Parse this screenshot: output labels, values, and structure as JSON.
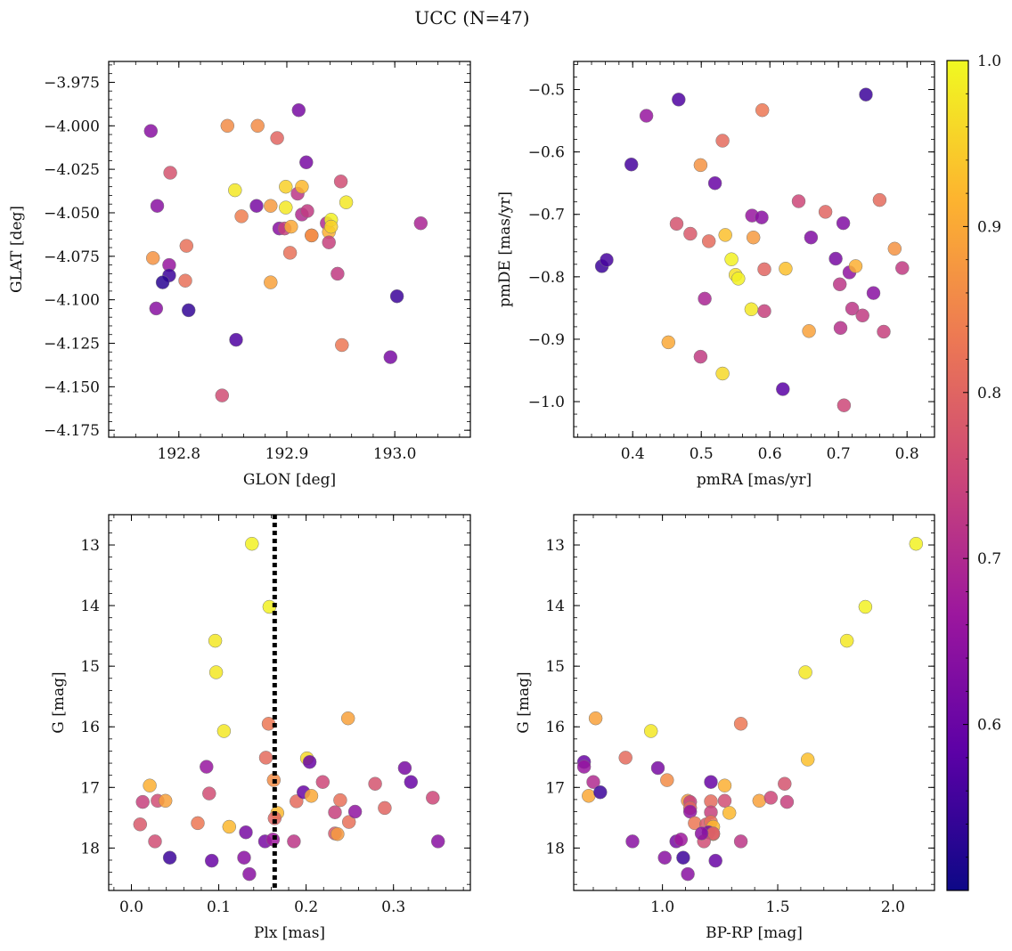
{
  "figure": {
    "title": "UCC (N=47)",
    "colorbar": {
      "range": [
        0.5,
        1.0
      ],
      "ticks": [
        0.6,
        0.7,
        0.8,
        0.9,
        1.0
      ],
      "tick_labels": [
        "0.6",
        "0.7",
        "0.8",
        "0.9",
        "1.0"
      ],
      "colormap": "plasma",
      "stops": [
        "#0d0887",
        "#5c01a6",
        "#9c179e",
        "#cc4778",
        "#ed7953",
        "#fdb42f",
        "#f0f921"
      ]
    }
  },
  "chart_data": [
    {
      "type": "scatter",
      "xlabel": "GLON [deg]",
      "ylabel": "GLAT [deg]",
      "xlim": [
        192.735,
        193.07
      ],
      "ylim": [
        -4.179,
        -3.963
      ],
      "xticks": [
        192.8,
        192.9,
        193.0
      ],
      "xtick_labels": [
        "192.8",
        "192.9",
        "193.0"
      ],
      "yticks": [
        -4.175,
        -4.15,
        -4.125,
        -4.1,
        -4.075,
        -4.05,
        -4.025,
        -4.0,
        -3.975
      ],
      "ytick_labels": [
        "−4.175",
        "−4.150",
        "−4.125",
        "−4.100",
        "−4.075",
        "−4.050",
        "−4.025",
        "−4.000",
        "−3.975"
      ],
      "invert_y": false,
      "points": [
        {
          "x": 192.774,
          "y": -4.003,
          "c": 0.64
        },
        {
          "x": 192.792,
          "y": -4.027,
          "c": 0.77
        },
        {
          "x": 192.78,
          "y": -4.046,
          "c": 0.64
        },
        {
          "x": 192.776,
          "y": -4.076,
          "c": 0.87
        },
        {
          "x": 192.791,
          "y": -4.08,
          "c": 0.66
        },
        {
          "x": 192.791,
          "y": -4.086,
          "c": 0.55
        },
        {
          "x": 192.785,
          "y": -4.09,
          "c": 0.53
        },
        {
          "x": 192.779,
          "y": -4.105,
          "c": 0.64
        },
        {
          "x": 192.807,
          "y": -4.069,
          "c": 0.82
        },
        {
          "x": 192.806,
          "y": -4.089,
          "c": 0.82
        },
        {
          "x": 192.809,
          "y": -4.106,
          "c": 0.54
        },
        {
          "x": 192.845,
          "y": -4.0,
          "c": 0.86
        },
        {
          "x": 192.873,
          "y": -4.0,
          "c": 0.86
        },
        {
          "x": 192.852,
          "y": -4.037,
          "c": 0.98
        },
        {
          "x": 192.858,
          "y": -4.052,
          "c": 0.84
        },
        {
          "x": 192.853,
          "y": -4.123,
          "c": 0.57
        },
        {
          "x": 192.84,
          "y": -4.155,
          "c": 0.76
        },
        {
          "x": 192.872,
          "y": -4.046,
          "c": 0.62
        },
        {
          "x": 192.885,
          "y": -4.046,
          "c": 0.88
        },
        {
          "x": 192.885,
          "y": -4.09,
          "c": 0.89
        },
        {
          "x": 192.891,
          "y": -4.007,
          "c": 0.8
        },
        {
          "x": 192.893,
          "y": -4.059,
          "c": 0.64
        },
        {
          "x": 192.898,
          "y": -4.059,
          "c": 0.74
        },
        {
          "x": 192.899,
          "y": -4.035,
          "c": 0.95
        },
        {
          "x": 192.899,
          "y": -4.047,
          "c": 0.98
        },
        {
          "x": 192.904,
          "y": -4.058,
          "c": 0.9
        },
        {
          "x": 192.903,
          "y": -4.073,
          "c": 0.82
        },
        {
          "x": 192.911,
          "y": -3.991,
          "c": 0.62
        },
        {
          "x": 192.91,
          "y": -4.039,
          "c": 0.72
        },
        {
          "x": 192.914,
          "y": -4.035,
          "c": 0.92
        },
        {
          "x": 192.918,
          "y": -4.021,
          "c": 0.62
        },
        {
          "x": 192.914,
          "y": -4.051,
          "c": 0.7
        },
        {
          "x": 192.919,
          "y": -4.049,
          "c": 0.73
        },
        {
          "x": 192.923,
          "y": -4.063,
          "c": 0.86
        },
        {
          "x": 192.923,
          "y": -4.063,
          "c": 0.86
        },
        {
          "x": 192.937,
          "y": -4.056,
          "c": 0.7
        },
        {
          "x": 192.939,
          "y": -4.061,
          "c": 0.91
        },
        {
          "x": 192.939,
          "y": -4.067,
          "c": 0.74
        },
        {
          "x": 192.941,
          "y": -4.054,
          "c": 0.99
        },
        {
          "x": 192.941,
          "y": -4.058,
          "c": 0.95
        },
        {
          "x": 192.95,
          "y": -4.032,
          "c": 0.76
        },
        {
          "x": 192.947,
          "y": -4.085,
          "c": 0.73
        },
        {
          "x": 192.951,
          "y": -4.126,
          "c": 0.83
        },
        {
          "x": 192.955,
          "y": -4.044,
          "c": 0.98
        },
        {
          "x": 193.002,
          "y": -4.098,
          "c": 0.55
        },
        {
          "x": 192.996,
          "y": -4.133,
          "c": 0.62
        },
        {
          "x": 193.024,
          "y": -4.056,
          "c": 0.69
        }
      ]
    },
    {
      "type": "scatter",
      "xlabel": "pmRA [mas/yr]",
      "ylabel": "pmDE [mas/yr]",
      "xlim": [
        0.314,
        0.84
      ],
      "ylim": [
        -1.057,
        -0.455
      ],
      "xticks": [
        0.4,
        0.5,
        0.6,
        0.7,
        0.8
      ],
      "xtick_labels": [
        "0.4",
        "0.5",
        "0.6",
        "0.7",
        "0.8"
      ],
      "yticks": [
        -1.0,
        -0.9,
        -0.8,
        -0.7,
        -0.6,
        -0.5
      ],
      "ytick_labels": [
        "−1.0",
        "−0.9",
        "−0.8",
        "−0.7",
        "−0.6",
        "−0.5"
      ],
      "invert_y": false,
      "points": [
        {
          "x": 0.355,
          "y": -0.783,
          "c": 0.55
        },
        {
          "x": 0.362,
          "y": -0.773,
          "c": 0.56
        },
        {
          "x": 0.398,
          "y": -0.62,
          "c": 0.56
        },
        {
          "x": 0.42,
          "y": -0.542,
          "c": 0.66
        },
        {
          "x": 0.467,
          "y": -0.516,
          "c": 0.57
        },
        {
          "x": 0.464,
          "y": -0.715,
          "c": 0.77
        },
        {
          "x": 0.484,
          "y": -0.731,
          "c": 0.78
        },
        {
          "x": 0.452,
          "y": -0.905,
          "c": 0.9
        },
        {
          "x": 0.499,
          "y": -0.621,
          "c": 0.87
        },
        {
          "x": 0.499,
          "y": -0.928,
          "c": 0.73
        },
        {
          "x": 0.505,
          "y": -0.835,
          "c": 0.69
        },
        {
          "x": 0.511,
          "y": -0.743,
          "c": 0.81
        },
        {
          "x": 0.52,
          "y": -0.65,
          "c": 0.6
        },
        {
          "x": 0.531,
          "y": -0.582,
          "c": 0.81
        },
        {
          "x": 0.535,
          "y": -0.733,
          "c": 0.93
        },
        {
          "x": 0.531,
          "y": -0.955,
          "c": 0.96
        },
        {
          "x": 0.544,
          "y": -0.772,
          "c": 0.99
        },
        {
          "x": 0.55,
          "y": -0.797,
          "c": 0.97
        },
        {
          "x": 0.554,
          "y": -0.803,
          "c": 0.99
        },
        {
          "x": 0.574,
          "y": -0.702,
          "c": 0.66
        },
        {
          "x": 0.576,
          "y": -0.737,
          "c": 0.88
        },
        {
          "x": 0.573,
          "y": -0.852,
          "c": 0.98
        },
        {
          "x": 0.588,
          "y": -0.705,
          "c": 0.64
        },
        {
          "x": 0.589,
          "y": -0.533,
          "c": 0.83
        },
        {
          "x": 0.592,
          "y": -0.788,
          "c": 0.8
        },
        {
          "x": 0.592,
          "y": -0.855,
          "c": 0.74
        },
        {
          "x": 0.619,
          "y": -0.98,
          "c": 0.58
        },
        {
          "x": 0.623,
          "y": -0.787,
          "c": 0.93
        },
        {
          "x": 0.642,
          "y": -0.679,
          "c": 0.75
        },
        {
          "x": 0.66,
          "y": -0.737,
          "c": 0.63
        },
        {
          "x": 0.657,
          "y": -0.887,
          "c": 0.89
        },
        {
          "x": 0.681,
          "y": -0.696,
          "c": 0.8
        },
        {
          "x": 0.696,
          "y": -0.771,
          "c": 0.62
        },
        {
          "x": 0.702,
          "y": -0.812,
          "c": 0.72
        },
        {
          "x": 0.703,
          "y": -0.882,
          "c": 0.71
        },
        {
          "x": 0.707,
          "y": -0.714,
          "c": 0.63
        },
        {
          "x": 0.708,
          "y": -1.006,
          "c": 0.75
        },
        {
          "x": 0.716,
          "y": -0.793,
          "c": 0.65
        },
        {
          "x": 0.72,
          "y": -0.851,
          "c": 0.72
        },
        {
          "x": 0.725,
          "y": -0.783,
          "c": 0.91
        },
        {
          "x": 0.735,
          "y": -0.862,
          "c": 0.73
        },
        {
          "x": 0.74,
          "y": -0.508,
          "c": 0.55
        },
        {
          "x": 0.751,
          "y": -0.826,
          "c": 0.64
        },
        {
          "x": 0.76,
          "y": -0.677,
          "c": 0.81
        },
        {
          "x": 0.766,
          "y": -0.888,
          "c": 0.74
        },
        {
          "x": 0.782,
          "y": -0.755,
          "c": 0.87
        },
        {
          "x": 0.793,
          "y": -0.786,
          "c": 0.73
        }
      ]
    },
    {
      "type": "scatter",
      "xlabel": "Plx [mas]",
      "ylabel": "G [mag]",
      "xlim": [
        -0.026,
        0.388
      ],
      "ylim": [
        12.5,
        18.7
      ],
      "xticks": [
        0.0,
        0.1,
        0.2,
        0.3
      ],
      "xtick_labels": [
        "0.0",
        "0.1",
        "0.2",
        "0.3"
      ],
      "yticks": [
        13,
        14,
        15,
        16,
        17,
        18
      ],
      "ytick_labels": [
        "13",
        "14",
        "15",
        "16",
        "17",
        "18"
      ],
      "invert_y": true,
      "vline": {
        "x": 0.164,
        "style": "dotted",
        "color": "#000000"
      },
      "points": [
        {
          "x": 0.138,
          "y": 12.98,
          "c": 0.99
        },
        {
          "x": 0.158,
          "y": 14.02,
          "c": 0.99
        },
        {
          "x": 0.096,
          "y": 14.58,
          "c": 0.98
        },
        {
          "x": 0.097,
          "y": 15.1,
          "c": 0.98
        },
        {
          "x": 0.106,
          "y": 16.07,
          "c": 0.98
        },
        {
          "x": 0.157,
          "y": 15.95,
          "c": 0.83
        },
        {
          "x": 0.248,
          "y": 15.86,
          "c": 0.89
        },
        {
          "x": 0.154,
          "y": 16.51,
          "c": 0.81
        },
        {
          "x": 0.086,
          "y": 16.66,
          "c": 0.66
        },
        {
          "x": 0.089,
          "y": 17.1,
          "c": 0.76
        },
        {
          "x": 0.013,
          "y": 17.24,
          "c": 0.74
        },
        {
          "x": 0.03,
          "y": 17.22,
          "c": 0.76
        },
        {
          "x": 0.039,
          "y": 17.22,
          "c": 0.89
        },
        {
          "x": 0.021,
          "y": 16.97,
          "c": 0.91
        },
        {
          "x": 0.01,
          "y": 17.61,
          "c": 0.78
        },
        {
          "x": 0.027,
          "y": 17.89,
          "c": 0.76
        },
        {
          "x": 0.076,
          "y": 17.59,
          "c": 0.83
        },
        {
          "x": 0.112,
          "y": 17.65,
          "c": 0.92
        },
        {
          "x": 0.044,
          "y": 18.16,
          "c": 0.55
        },
        {
          "x": 0.092,
          "y": 18.21,
          "c": 0.6
        },
        {
          "x": 0.131,
          "y": 17.74,
          "c": 0.62
        },
        {
          "x": 0.129,
          "y": 18.16,
          "c": 0.64
        },
        {
          "x": 0.135,
          "y": 18.43,
          "c": 0.64
        },
        {
          "x": 0.153,
          "y": 17.89,
          "c": 0.62
        },
        {
          "x": 0.163,
          "y": 16.88,
          "c": 0.86
        },
        {
          "x": 0.167,
          "y": 17.42,
          "c": 0.92
        },
        {
          "x": 0.164,
          "y": 17.51,
          "c": 0.8
        },
        {
          "x": 0.162,
          "y": 17.86,
          "c": 0.67
        },
        {
          "x": 0.186,
          "y": 17.89,
          "c": 0.72
        },
        {
          "x": 0.189,
          "y": 17.23,
          "c": 0.81
        },
        {
          "x": 0.197,
          "y": 17.08,
          "c": 0.6
        },
        {
          "x": 0.201,
          "y": 16.52,
          "c": 0.96
        },
        {
          "x": 0.204,
          "y": 16.58,
          "c": 0.6
        },
        {
          "x": 0.206,
          "y": 17.14,
          "c": 0.9
        },
        {
          "x": 0.219,
          "y": 16.91,
          "c": 0.75
        },
        {
          "x": 0.233,
          "y": 17.41,
          "c": 0.74
        },
        {
          "x": 0.233,
          "y": 17.76,
          "c": 0.78
        },
        {
          "x": 0.236,
          "y": 17.77,
          "c": 0.88
        },
        {
          "x": 0.239,
          "y": 17.21,
          "c": 0.82
        },
        {
          "x": 0.249,
          "y": 17.57,
          "c": 0.82
        },
        {
          "x": 0.256,
          "y": 17.4,
          "c": 0.65
        },
        {
          "x": 0.279,
          "y": 16.94,
          "c": 0.77
        },
        {
          "x": 0.29,
          "y": 17.34,
          "c": 0.8
        },
        {
          "x": 0.313,
          "y": 16.68,
          "c": 0.62
        },
        {
          "x": 0.32,
          "y": 16.91,
          "c": 0.6
        },
        {
          "x": 0.345,
          "y": 17.17,
          "c": 0.75
        },
        {
          "x": 0.351,
          "y": 17.89,
          "c": 0.64
        }
      ]
    },
    {
      "type": "scatter",
      "xlabel": "BP-RP [mag]",
      "ylabel": "G [mag]",
      "xlim": [
        0.615,
        2.18
      ],
      "ylim": [
        12.5,
        18.7
      ],
      "xticks": [
        1.0,
        1.5,
        2.0
      ],
      "xtick_labels": [
        "1.0",
        "1.5",
        "2.0"
      ],
      "yticks": [
        13,
        14,
        15,
        16,
        17,
        18
      ],
      "ytick_labels": [
        "13",
        "14",
        "15",
        "16",
        "17",
        "18"
      ],
      "invert_y": true,
      "points": [
        {
          "x": 2.1,
          "y": 12.98,
          "c": 0.99
        },
        {
          "x": 1.88,
          "y": 14.02,
          "c": 0.99
        },
        {
          "x": 1.8,
          "y": 14.58,
          "c": 0.98
        },
        {
          "x": 1.62,
          "y": 15.1,
          "c": 0.98
        },
        {
          "x": 0.95,
          "y": 16.07,
          "c": 0.98
        },
        {
          "x": 0.71,
          "y": 15.86,
          "c": 0.89
        },
        {
          "x": 1.34,
          "y": 15.95,
          "c": 0.83
        },
        {
          "x": 1.63,
          "y": 16.54,
          "c": 0.93
        },
        {
          "x": 0.84,
          "y": 16.51,
          "c": 0.81
        },
        {
          "x": 0.66,
          "y": 16.58,
          "c": 0.6
        },
        {
          "x": 0.66,
          "y": 16.66,
          "c": 0.66
        },
        {
          "x": 0.7,
          "y": 16.91,
          "c": 0.7
        },
        {
          "x": 0.68,
          "y": 17.14,
          "c": 0.9
        },
        {
          "x": 0.73,
          "y": 17.08,
          "c": 0.55
        },
        {
          "x": 0.98,
          "y": 16.68,
          "c": 0.62
        },
        {
          "x": 1.02,
          "y": 16.88,
          "c": 0.86
        },
        {
          "x": 1.21,
          "y": 16.91,
          "c": 0.6
        },
        {
          "x": 1.27,
          "y": 16.97,
          "c": 0.91
        },
        {
          "x": 1.53,
          "y": 16.94,
          "c": 0.77
        },
        {
          "x": 1.11,
          "y": 17.22,
          "c": 0.88
        },
        {
          "x": 1.12,
          "y": 17.24,
          "c": 0.74
        },
        {
          "x": 1.12,
          "y": 17.34,
          "c": 0.8
        },
        {
          "x": 1.12,
          "y": 17.4,
          "c": 0.65
        },
        {
          "x": 1.21,
          "y": 17.23,
          "c": 0.81
        },
        {
          "x": 1.27,
          "y": 17.22,
          "c": 0.76
        },
        {
          "x": 1.29,
          "y": 17.42,
          "c": 0.92
        },
        {
          "x": 1.21,
          "y": 17.41,
          "c": 0.74
        },
        {
          "x": 1.42,
          "y": 17.22,
          "c": 0.89
        },
        {
          "x": 1.47,
          "y": 17.17,
          "c": 0.75
        },
        {
          "x": 1.54,
          "y": 17.24,
          "c": 0.74
        },
        {
          "x": 1.14,
          "y": 17.59,
          "c": 0.83
        },
        {
          "x": 1.19,
          "y": 17.61,
          "c": 0.78
        },
        {
          "x": 1.21,
          "y": 17.57,
          "c": 0.82
        },
        {
          "x": 1.22,
          "y": 17.65,
          "c": 0.92
        },
        {
          "x": 1.2,
          "y": 17.74,
          "c": 0.62
        },
        {
          "x": 1.22,
          "y": 17.77,
          "c": 0.88
        },
        {
          "x": 1.22,
          "y": 17.76,
          "c": 0.78
        },
        {
          "x": 1.18,
          "y": 17.89,
          "c": 0.76
        },
        {
          "x": 1.34,
          "y": 17.89,
          "c": 0.72
        },
        {
          "x": 1.06,
          "y": 17.89,
          "c": 0.62
        },
        {
          "x": 1.08,
          "y": 17.86,
          "c": 0.67
        },
        {
          "x": 1.17,
          "y": 17.76,
          "c": 0.64
        },
        {
          "x": 0.87,
          "y": 17.89,
          "c": 0.64
        },
        {
          "x": 1.01,
          "y": 18.16,
          "c": 0.64
        },
        {
          "x": 1.09,
          "y": 18.16,
          "c": 0.55
        },
        {
          "x": 1.23,
          "y": 18.21,
          "c": 0.6
        },
        {
          "x": 1.11,
          "y": 18.43,
          "c": 0.64
        }
      ]
    }
  ]
}
